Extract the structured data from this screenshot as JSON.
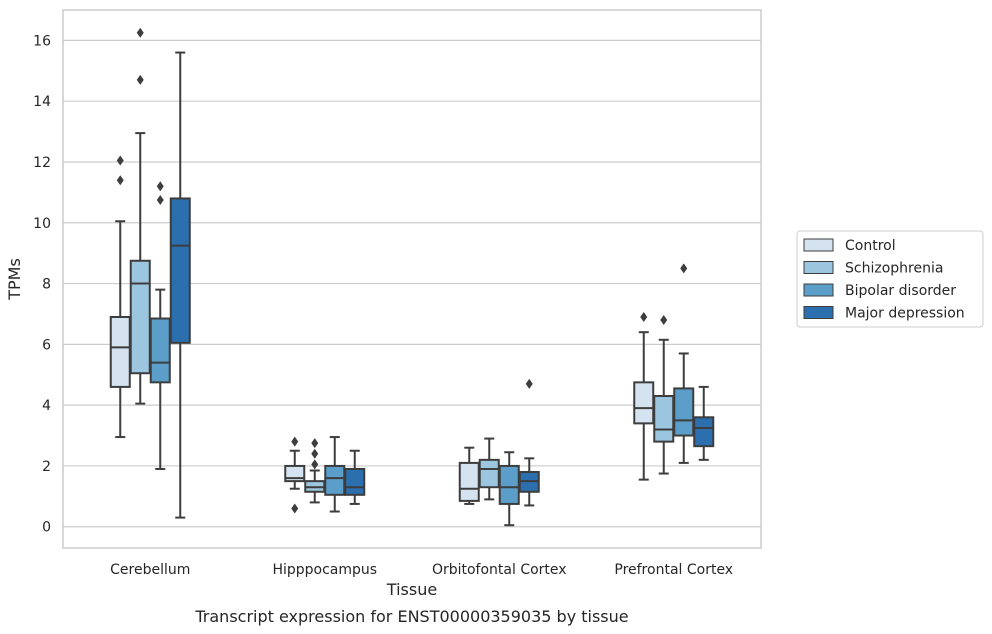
{
  "chart_data": {
    "type": "boxplot",
    "title": "Transcript expression for ENST00000359035 by tissue",
    "xlabel": "Tissue",
    "ylabel": "TPMs",
    "ylim": [
      -0.7,
      17.0
    ],
    "yticks": [
      0,
      2,
      4,
      6,
      8,
      10,
      12,
      14,
      16
    ],
    "grid": true,
    "legend_position": "right",
    "categories": [
      "Cerebellum",
      "Hipppocampus",
      "Orbitofontal Cortex",
      "Prefrontal Cortex"
    ],
    "series": [
      {
        "name": "Control",
        "color": "#d5e3f1",
        "boxes": [
          {
            "whislo": 2.95,
            "q1": 4.6,
            "med": 5.9,
            "q3": 6.9,
            "whishi": 10.05,
            "fliers": [
              11.4,
              12.05
            ]
          },
          {
            "whislo": 1.25,
            "q1": 1.5,
            "med": 1.6,
            "q3": 2.0,
            "whishi": 2.5,
            "fliers": [
              0.6,
              2.8
            ]
          },
          {
            "whislo": 0.75,
            "q1": 0.85,
            "med": 1.25,
            "q3": 2.1,
            "whishi": 2.6,
            "fliers": []
          },
          {
            "whislo": 1.55,
            "q1": 3.4,
            "med": 3.9,
            "q3": 4.75,
            "whishi": 6.4,
            "fliers": [
              6.9
            ]
          }
        ]
      },
      {
        "name": "Schizophrenia",
        "color": "#9cc6e0",
        "boxes": [
          {
            "whislo": 4.05,
            "q1": 5.05,
            "med": 8.0,
            "q3": 8.75,
            "whishi": 12.95,
            "fliers": [
              14.7,
              16.25
            ]
          },
          {
            "whislo": 0.8,
            "q1": 1.15,
            "med": 1.3,
            "q3": 1.5,
            "whishi": 1.85,
            "fliers": [
              2.05,
              2.4,
              2.75
            ]
          },
          {
            "whislo": 0.9,
            "q1": 1.3,
            "med": 1.9,
            "q3": 2.2,
            "whishi": 2.9,
            "fliers": []
          },
          {
            "whislo": 1.75,
            "q1": 2.8,
            "med": 3.2,
            "q3": 4.3,
            "whishi": 6.15,
            "fliers": [
              6.8
            ]
          }
        ]
      },
      {
        "name": "Bipolar disorder",
        "color": "#5b9ec9",
        "boxes": [
          {
            "whislo": 1.9,
            "q1": 4.75,
            "med": 5.4,
            "q3": 6.85,
            "whishi": 7.8,
            "fliers": [
              10.75,
              11.2
            ]
          },
          {
            "whislo": 0.5,
            "q1": 1.05,
            "med": 1.6,
            "q3": 2.0,
            "whishi": 2.95,
            "fliers": []
          },
          {
            "whislo": 0.05,
            "q1": 0.75,
            "med": 1.3,
            "q3": 2.0,
            "whishi": 2.45,
            "fliers": []
          },
          {
            "whislo": 2.1,
            "q1": 3.0,
            "med": 3.5,
            "q3": 4.55,
            "whishi": 5.7,
            "fliers": [
              8.5
            ]
          }
        ]
      },
      {
        "name": "Major depression",
        "color": "#2b6fae",
        "boxes": [
          {
            "whislo": 0.3,
            "q1": 6.05,
            "med": 9.25,
            "q3": 10.8,
            "whishi": 15.6,
            "fliers": []
          },
          {
            "whislo": 0.75,
            "q1": 1.05,
            "med": 1.3,
            "q3": 1.9,
            "whishi": 2.5,
            "fliers": []
          },
          {
            "whislo": 0.7,
            "q1": 1.15,
            "med": 1.5,
            "q3": 1.8,
            "whishi": 2.25,
            "fliers": [
              4.7
            ]
          },
          {
            "whislo": 2.2,
            "q1": 2.65,
            "med": 3.25,
            "q3": 3.6,
            "whishi": 4.6,
            "fliers": []
          }
        ]
      }
    ]
  }
}
